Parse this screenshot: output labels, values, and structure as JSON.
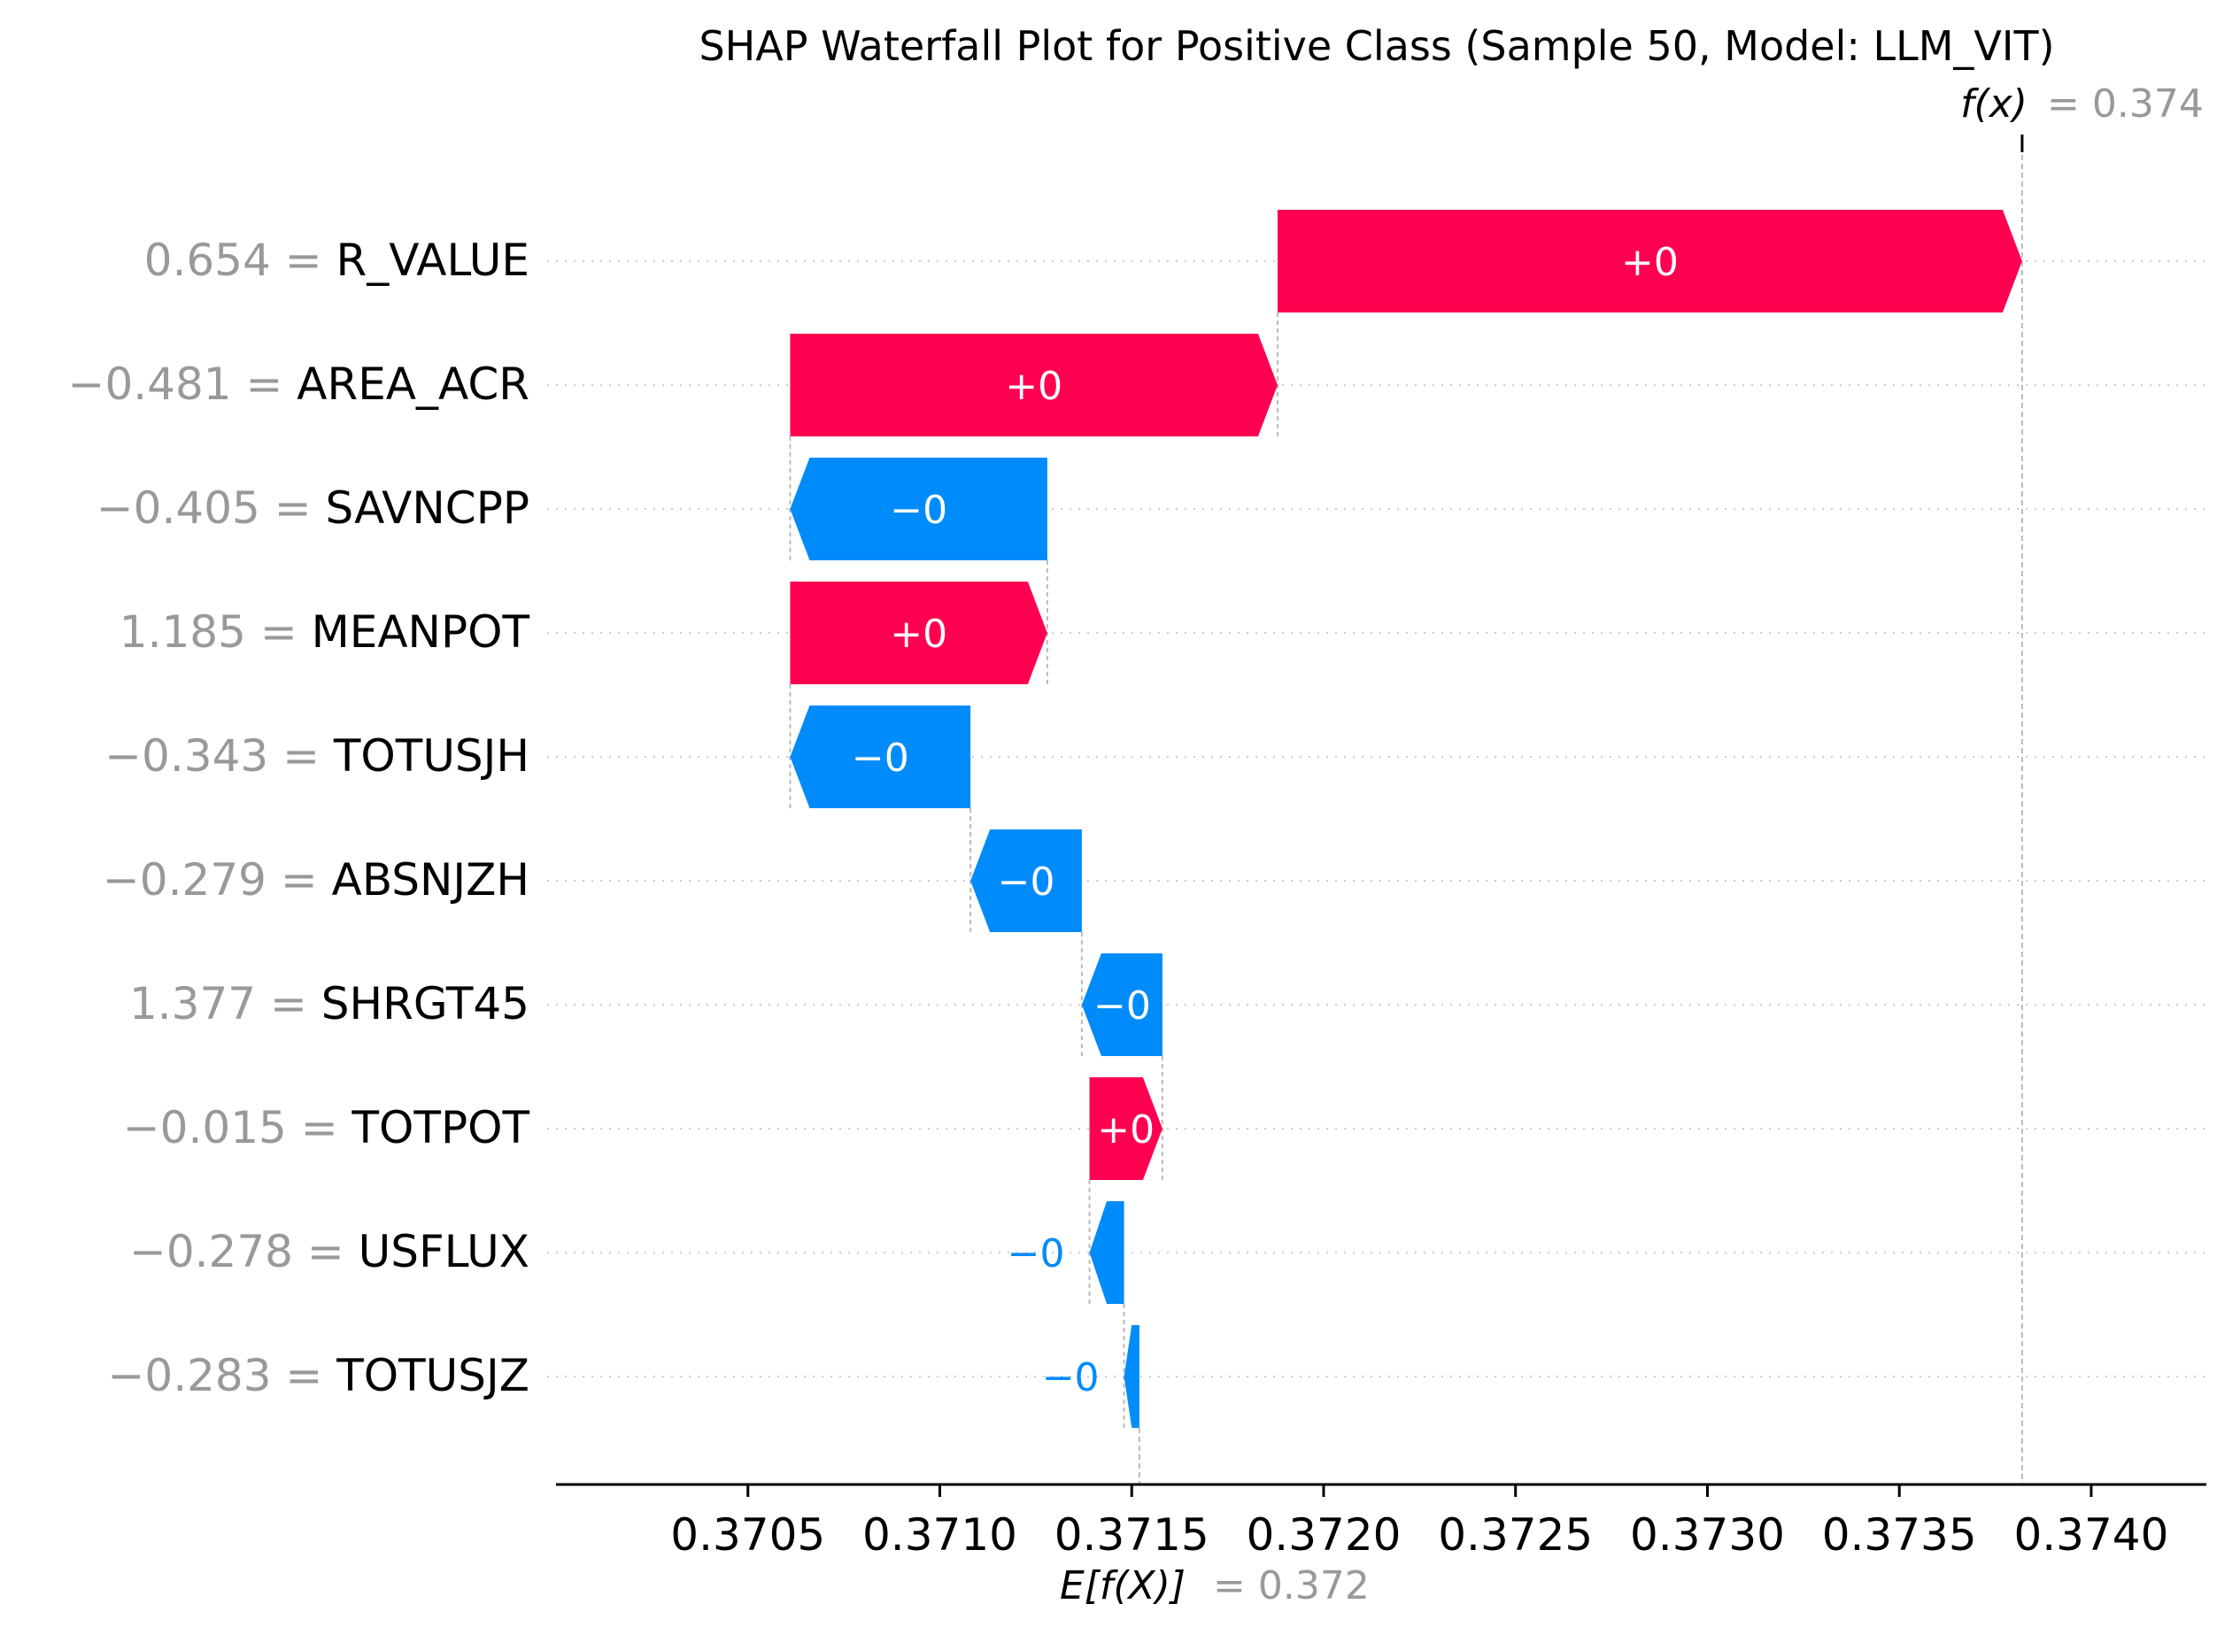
{
  "chart_data": {
    "type": "waterfall",
    "title": "SHAP Waterfall Plot for Positive Class (Sample 50, Model: LLM_VIT)",
    "fx_label": "f(x)",
    "fx_value": "= 0.374",
    "efx_label": "E[f(X)]",
    "efx_value": "= 0.372",
    "final_value": 0.37382,
    "base_value": 0.37152,
    "xlim": [
      0.37,
      0.3743
    ],
    "xticks": [
      0.3705,
      0.371,
      0.3715,
      0.372,
      0.3725,
      0.373,
      0.3735,
      0.374
    ],
    "xtick_labels": [
      "0.3705",
      "0.3710",
      "0.3715",
      "0.3720",
      "0.3725",
      "0.3730",
      "0.3735",
      "0.3740"
    ],
    "features": [
      {
        "value_text": "0.654 =",
        "name": "R_VALUE",
        "start": 0.37188,
        "end": 0.37382,
        "label": "+0",
        "sign": "pos",
        "label_inside": true
      },
      {
        "value_text": "−0.481 =",
        "name": "AREA_ACR",
        "start": 0.37061,
        "end": 0.37188,
        "label": "+0",
        "sign": "pos",
        "label_inside": true
      },
      {
        "value_text": "−0.405 =",
        "name": "SAVNCPP",
        "start": 0.37128,
        "end": 0.37061,
        "label": "−0",
        "sign": "neg",
        "label_inside": true
      },
      {
        "value_text": "1.185 =",
        "name": "MEANPOT",
        "start": 0.37061,
        "end": 0.37128,
        "label": "+0",
        "sign": "pos",
        "label_inside": true
      },
      {
        "value_text": "−0.343 =",
        "name": "TOTUSJH",
        "start": 0.37108,
        "end": 0.37061,
        "label": "−0",
        "sign": "neg",
        "label_inside": true
      },
      {
        "value_text": "−0.279 =",
        "name": "ABSNJZH",
        "start": 0.37137,
        "end": 0.37108,
        "label": "−0",
        "sign": "neg",
        "label_inside": true
      },
      {
        "value_text": "1.377 =",
        "name": "SHRGT45",
        "start": 0.37158,
        "end": 0.37137,
        "label": "−0",
        "sign": "neg",
        "label_inside": true
      },
      {
        "value_text": "−0.015 =",
        "name": "TOTPOT",
        "start": 0.37139,
        "end": 0.37158,
        "label": "+0",
        "sign": "pos",
        "label_inside": true
      },
      {
        "value_text": "−0.278 =",
        "name": "USFLUX",
        "start": 0.37148,
        "end": 0.37139,
        "label": "−0",
        "sign": "neg",
        "label_inside": false
      },
      {
        "value_text": "−0.283 =",
        "name": "TOTUSJZ",
        "start": 0.37152,
        "end": 0.37148,
        "label": "−0",
        "sign": "neg",
        "label_inside": false
      }
    ],
    "colors": {
      "positive": "#ff0051",
      "negative": "#008bfb",
      "value_gray": "#999999",
      "text": "#000000"
    },
    "grid": "dotted-rows"
  }
}
